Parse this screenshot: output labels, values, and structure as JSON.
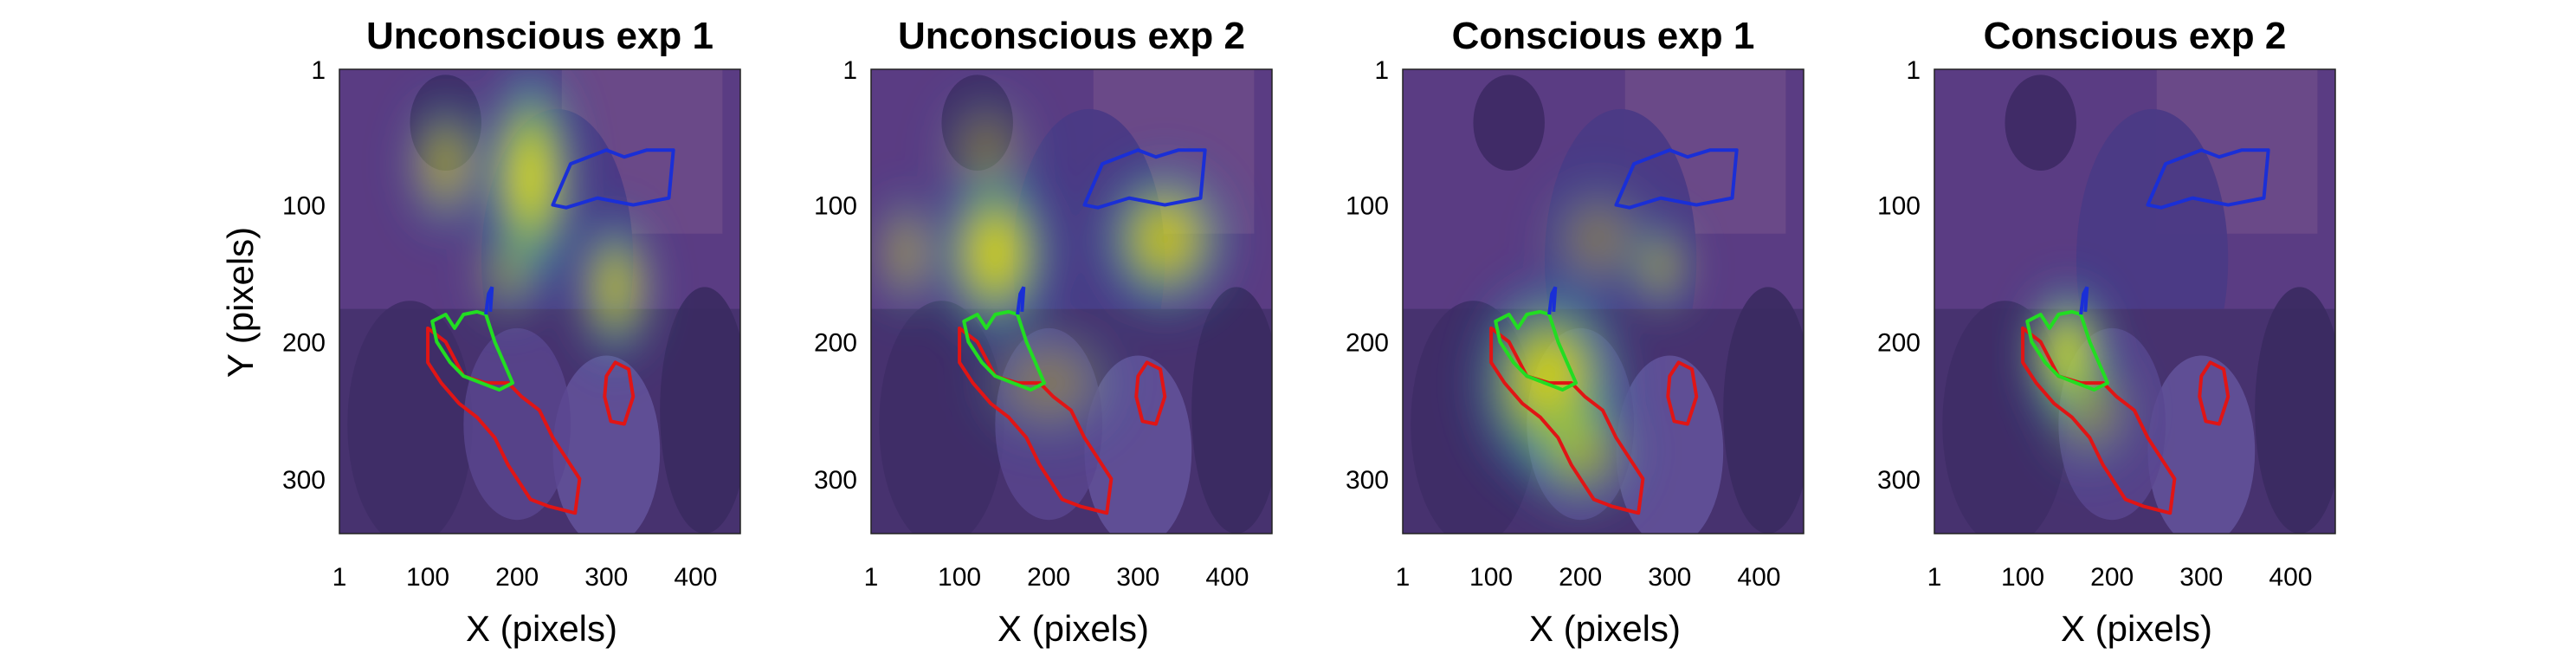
{
  "chart_data": {
    "type": "heatmap",
    "ylabel": "Y (pixels)",
    "xlabel": "X (pixels)",
    "xlim": [
      1,
      450
    ],
    "ylim": [
      1,
      340
    ],
    "xticks": [
      "1",
      "100",
      "200",
      "300",
      "400"
    ],
    "yticks": [
      "1",
      "100",
      "200",
      "300"
    ],
    "region_colors": {
      "blue": "#1a2fd6",
      "green": "#22dd22",
      "red": "#e01515"
    },
    "panels": [
      {
        "title": "Unconscious exp 1",
        "hotspots": [
          {
            "x": 215,
            "y": 80,
            "sx": 28,
            "sy": 45,
            "intensity": 0.95
          },
          {
            "x": 310,
            "y": 160,
            "sx": 24,
            "sy": 30,
            "intensity": 0.75
          },
          {
            "x": 120,
            "y": 70,
            "sx": 25,
            "sy": 28,
            "intensity": 0.6
          },
          {
            "x": 190,
            "y": 150,
            "sx": 22,
            "sy": 20,
            "intensity": 0.45
          }
        ]
      },
      {
        "title": "Unconscious exp 2",
        "hotspots": [
          {
            "x": 140,
            "y": 135,
            "sx": 35,
            "sy": 35,
            "intensity": 0.9
          },
          {
            "x": 330,
            "y": 125,
            "sx": 40,
            "sy": 30,
            "intensity": 0.8
          },
          {
            "x": 40,
            "y": 135,
            "sx": 20,
            "sy": 25,
            "intensity": 0.5
          },
          {
            "x": 130,
            "y": 60,
            "sx": 30,
            "sy": 25,
            "intensity": 0.35
          },
          {
            "x": 200,
            "y": 230,
            "sx": 45,
            "sy": 25,
            "intensity": 0.35
          }
        ]
      },
      {
        "title": "Conscious exp 1",
        "hotspots": [
          {
            "x": 165,
            "y": 230,
            "sx": 45,
            "sy": 40,
            "intensity": 0.9
          },
          {
            "x": 200,
            "y": 280,
            "sx": 35,
            "sy": 25,
            "intensity": 0.55
          },
          {
            "x": 290,
            "y": 145,
            "sx": 20,
            "sy": 20,
            "intensity": 0.55
          },
          {
            "x": 220,
            "y": 125,
            "sx": 35,
            "sy": 25,
            "intensity": 0.35
          }
        ]
      },
      {
        "title": "Conscious exp 2",
        "hotspots": [
          {
            "x": 150,
            "y": 210,
            "sx": 25,
            "sy": 28,
            "intensity": 1.0
          },
          {
            "x": 175,
            "y": 250,
            "sx": 30,
            "sy": 25,
            "intensity": 0.4
          }
        ]
      }
    ]
  }
}
